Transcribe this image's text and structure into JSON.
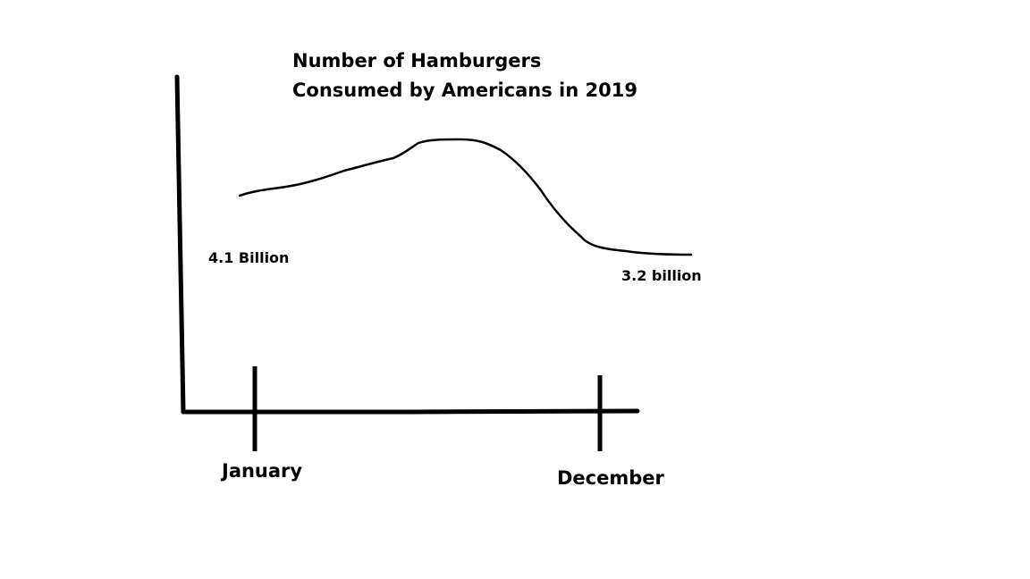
{
  "chart_data": {
    "type": "line",
    "title": "Number of Hamburgers\nConsumed by Americans in 2019",
    "title_lines": [
      "Number of Hamburgers",
      "Consumed by Americans in 2019"
    ],
    "xlabel": "",
    "ylabel": "",
    "x_tick_labels": [
      "January",
      "December"
    ],
    "data_labels": {
      "start": "4.1 Billion",
      "end": "3.2 billion"
    },
    "series": [
      {
        "x": [
          "January",
          "December"
        ],
        "values": [
          4.1,
          3.2
        ],
        "unit": "billion"
      }
    ],
    "grid": false,
    "legend": "none",
    "colors": {
      "line": "#000000",
      "axes": "#000000",
      "text": "#000000",
      "background": "#ffffff"
    }
  }
}
